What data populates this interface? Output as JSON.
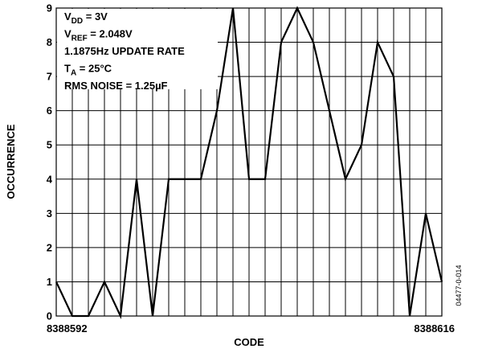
{
  "chart_data": {
    "type": "line",
    "x": [
      8388592,
      8388593,
      8388594,
      8388595,
      8388596,
      8388597,
      8388598,
      8388599,
      8388600,
      8388601,
      8388602,
      8388603,
      8388604,
      8388605,
      8388606,
      8388607,
      8388608,
      8388609,
      8388610,
      8388611,
      8388612,
      8388613,
      8388614,
      8388615,
      8388616
    ],
    "series": [
      {
        "values": [
          1,
          0,
          0,
          1,
          0,
          4,
          0,
          4,
          4,
          4,
          6,
          9,
          4,
          4,
          8,
          9,
          8,
          6,
          4,
          5,
          8,
          7,
          0,
          3,
          1
        ]
      }
    ],
    "xlabel": "CODE",
    "ylabel": "OCCURRENCE",
    "x_tick_labels": [
      {
        "value": 8388592,
        "label": "8388592"
      },
      {
        "value": 8388616,
        "label": "8388616"
      }
    ],
    "y_tick_labels": [
      "0",
      "1",
      "2",
      "3",
      "4",
      "5",
      "6",
      "7",
      "8",
      "9"
    ],
    "ylim": [
      0,
      9
    ],
    "xlim": [
      8388592,
      8388616
    ],
    "grid": true,
    "line_color": "#000000",
    "annotation_lines": [
      {
        "main": "V",
        "sub": "DD",
        "rest": " = 3V"
      },
      {
        "main": "V",
        "sub": "REF",
        "rest": " = 2.048V"
      },
      {
        "main": "1.1875Hz UPDATE RATE",
        "sub": "",
        "rest": ""
      },
      {
        "main": "T",
        "sub": "A",
        "rest": " = 25°C"
      },
      {
        "main": "RMS NOISE = 1.25µF",
        "sub": "",
        "rest": ""
      }
    ],
    "figure_id": "04477-0-014"
  }
}
